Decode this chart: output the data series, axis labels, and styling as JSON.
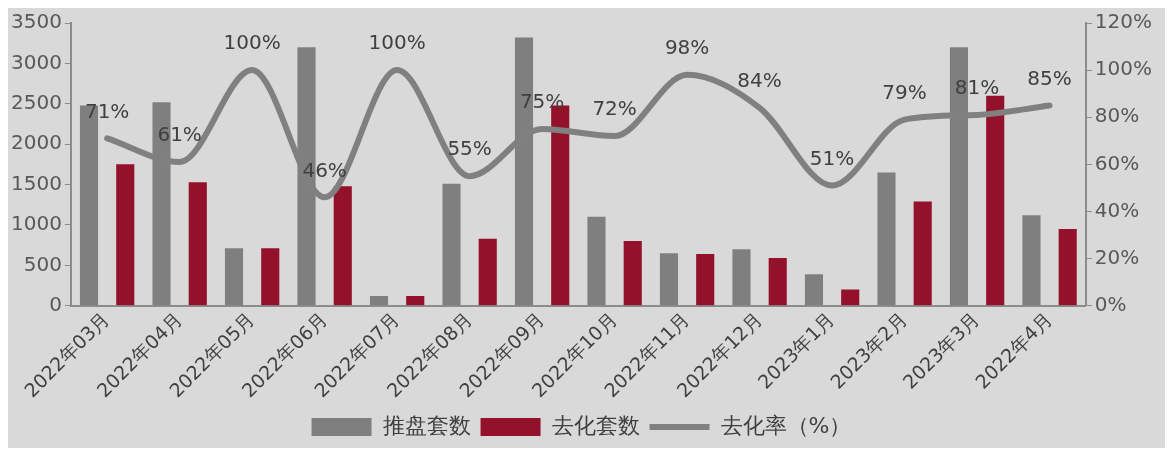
{
  "chart_data": {
    "type": "bar",
    "categories": [
      "2022年03月",
      "2022年04月",
      "2022年05月",
      "2022年06月",
      "2022年07月",
      "2022年08月",
      "2022年09月",
      "2022年10月",
      "2022年11月",
      "2022年12月",
      "2023年1月",
      "2023年2月",
      "2023年3月",
      "2022年4月"
    ],
    "series": [
      {
        "name": "推盘套数",
        "color": "#7f7f7f",
        "values": [
          2480,
          2520,
          710,
          3200,
          120,
          1510,
          3320,
          1100,
          650,
          700,
          390,
          1650,
          3200,
          1120
        ]
      },
      {
        "name": "去化套数",
        "color": "#93112a",
        "values": [
          1750,
          1530,
          710,
          1480,
          120,
          830,
          2480,
          800,
          640,
          590,
          200,
          1290,
          2600,
          950
        ]
      },
      {
        "name": "去化率（%）",
        "type": "line",
        "axis": "y2",
        "color": "#808080",
        "values": [
          71,
          61,
          100,
          46,
          100,
          55,
          75,
          72,
          98,
          84,
          51,
          79,
          81,
          85
        ],
        "value_labels": [
          "71%",
          "61%",
          "100%",
          "46%",
          "100%",
          "55%",
          "75%",
          "72%",
          "98%",
          "84%",
          "51%",
          "79%",
          "81%",
          "85%"
        ]
      }
    ],
    "ylim": [
      0,
      3500
    ],
    "yticks": [
      0,
      500,
      1000,
      1500,
      2000,
      2500,
      3000,
      3500
    ],
    "y2lim": [
      0,
      120
    ],
    "y2ticks": [
      {
        "value": 0,
        "label": "0%"
      },
      {
        "value": 20,
        "label": "20%"
      },
      {
        "value": 40,
        "label": "40%"
      },
      {
        "value": 60,
        "label": "60%"
      },
      {
        "value": 80,
        "label": "80%"
      },
      {
        "value": 100,
        "label": "100%"
      },
      {
        "value": 120,
        "label": "120%"
      }
    ],
    "grid": false,
    "legend": "bottom",
    "marker": "none"
  }
}
